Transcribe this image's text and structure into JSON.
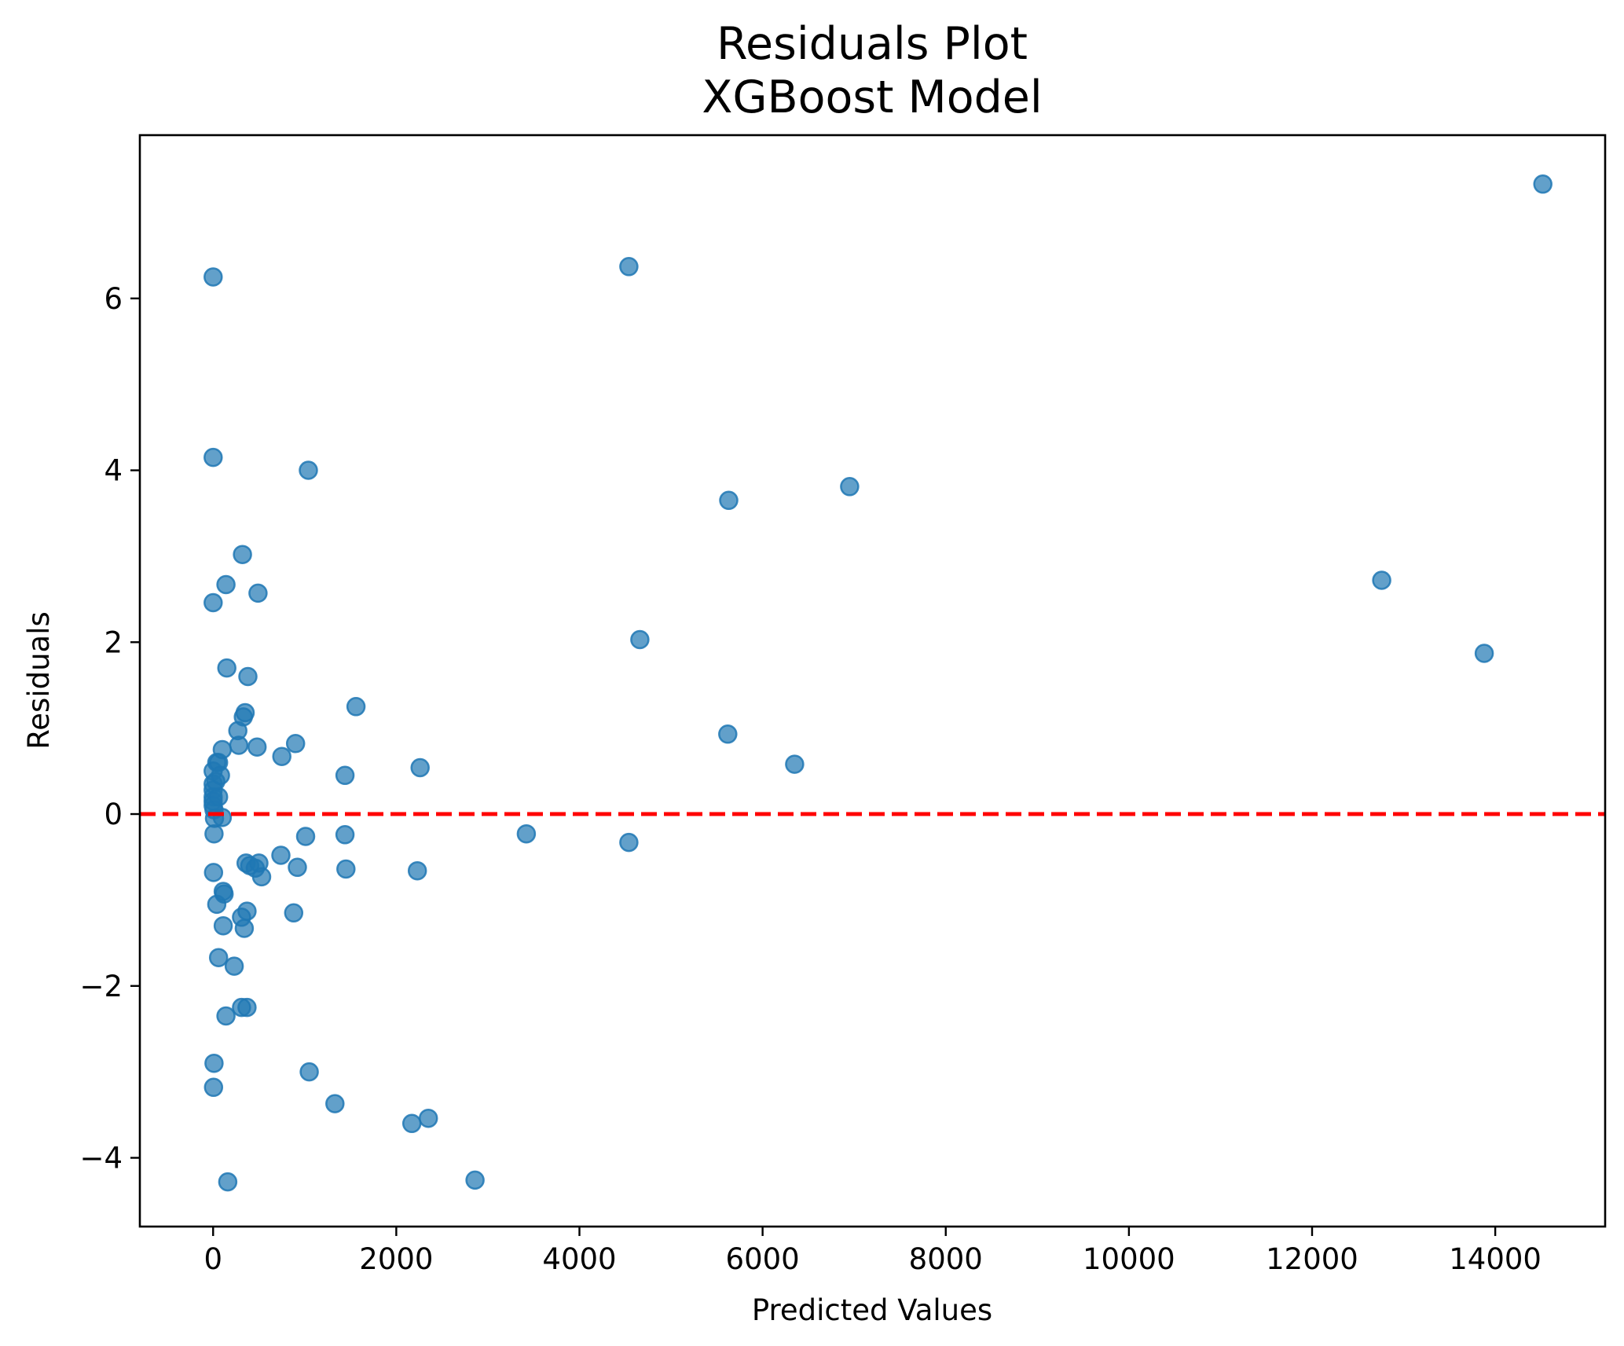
{
  "chart_data": {
    "type": "scatter",
    "title": [
      "Residuals Plot",
      "XGBoost Model"
    ],
    "xlabel": "Predicted Values",
    "ylabel": "Residuals",
    "xlim": [
      -800,
      15200
    ],
    "ylim": [
      -4.8,
      7.9
    ],
    "xticks": [
      0,
      2000,
      4000,
      6000,
      8000,
      10000,
      12000,
      14000
    ],
    "yticks": [
      -4,
      -2,
      0,
      2,
      4,
      6
    ],
    "ytick_labels": [
      "−4",
      "−2",
      "0",
      "2",
      "4",
      "6"
    ],
    "grid": false,
    "reference_line": {
      "y": 0,
      "color": "#ff0000",
      "style": "dashed"
    },
    "point_color": "#1f77b4",
    "points": [
      {
        "x": 0,
        "y": 6.25
      },
      {
        "x": 0,
        "y": 4.15
      },
      {
        "x": 0,
        "y": 2.46
      },
      {
        "x": 0,
        "y": 0.5
      },
      {
        "x": 0,
        "y": 0.35
      },
      {
        "x": 0,
        "y": 0.28
      },
      {
        "x": 0,
        "y": 0.2
      },
      {
        "x": 0,
        "y": 0.15
      },
      {
        "x": 0,
        "y": 0.1
      },
      {
        "x": 10,
        "y": 0.05
      },
      {
        "x": 15,
        "y": -0.05
      },
      {
        "x": 10,
        "y": -0.23
      },
      {
        "x": 5,
        "y": -0.68
      },
      {
        "x": 10,
        "y": -2.9
      },
      {
        "x": 5,
        "y": -3.18
      },
      {
        "x": 30,
        "y": 0.38
      },
      {
        "x": 40,
        "y": 0.6
      },
      {
        "x": 60,
        "y": 0.2
      },
      {
        "x": 60,
        "y": 0.6
      },
      {
        "x": 80,
        "y": 0.45
      },
      {
        "x": 100,
        "y": 0.75
      },
      {
        "x": 100,
        "y": -0.04
      },
      {
        "x": 40,
        "y": -1.05
      },
      {
        "x": 110,
        "y": -0.9
      },
      {
        "x": 120,
        "y": -0.93
      },
      {
        "x": 110,
        "y": -1.3
      },
      {
        "x": 60,
        "y": -1.67
      },
      {
        "x": 140,
        "y": 2.67
      },
      {
        "x": 150,
        "y": 1.7
      },
      {
        "x": 140,
        "y": -2.35
      },
      {
        "x": 230,
        "y": -1.77
      },
      {
        "x": 160,
        "y": -4.28
      },
      {
        "x": 320,
        "y": 3.02
      },
      {
        "x": 270,
        "y": 0.97
      },
      {
        "x": 280,
        "y": 0.8
      },
      {
        "x": 330,
        "y": 1.13
      },
      {
        "x": 350,
        "y": 1.18
      },
      {
        "x": 380,
        "y": 1.6
      },
      {
        "x": 490,
        "y": 2.57
      },
      {
        "x": 480,
        "y": 0.78
      },
      {
        "x": 360,
        "y": -0.57
      },
      {
        "x": 400,
        "y": -0.6
      },
      {
        "x": 460,
        "y": -0.63
      },
      {
        "x": 500,
        "y": -0.57
      },
      {
        "x": 530,
        "y": -0.73
      },
      {
        "x": 310,
        "y": -1.2
      },
      {
        "x": 370,
        "y": -1.13
      },
      {
        "x": 340,
        "y": -1.33
      },
      {
        "x": 310,
        "y": -2.25
      },
      {
        "x": 370,
        "y": -2.25
      },
      {
        "x": 750,
        "y": 0.67
      },
      {
        "x": 740,
        "y": -0.48
      },
      {
        "x": 900,
        "y": 0.82
      },
      {
        "x": 920,
        "y": -0.62
      },
      {
        "x": 880,
        "y": -1.15
      },
      {
        "x": 1040,
        "y": 4.0
      },
      {
        "x": 1010,
        "y": -0.26
      },
      {
        "x": 1050,
        "y": -3.0
      },
      {
        "x": 1330,
        "y": -3.37
      },
      {
        "x": 1440,
        "y": 0.45
      },
      {
        "x": 1440,
        "y": -0.24
      },
      {
        "x": 1450,
        "y": -0.64
      },
      {
        "x": 1560,
        "y": 1.25
      },
      {
        "x": 2260,
        "y": 0.54
      },
      {
        "x": 2230,
        "y": -0.66
      },
      {
        "x": 2170,
        "y": -3.6
      },
      {
        "x": 2350,
        "y": -3.54
      },
      {
        "x": 2860,
        "y": -4.26
      },
      {
        "x": 3420,
        "y": -0.23
      },
      {
        "x": 4540,
        "y": 6.37
      },
      {
        "x": 4660,
        "y": 2.03
      },
      {
        "x": 4540,
        "y": -0.33
      },
      {
        "x": 5630,
        "y": 3.65
      },
      {
        "x": 5620,
        "y": 0.93
      },
      {
        "x": 6350,
        "y": 0.58
      },
      {
        "x": 6950,
        "y": 3.81
      },
      {
        "x": 12760,
        "y": 2.72
      },
      {
        "x": 13880,
        "y": 1.87
      },
      {
        "x": 14520,
        "y": 7.33
      }
    ]
  }
}
